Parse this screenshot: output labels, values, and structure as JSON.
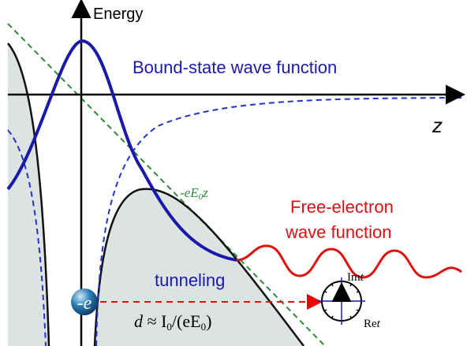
{
  "axes": {
    "y_label": "Energy",
    "x_label": "z"
  },
  "labels": {
    "bound_state": "Bound-state wave function",
    "field": {
      "main": "-eE",
      "sub": "0",
      "tail": "z"
    },
    "free_electron": [
      "Free-electron",
      "wave function"
    ],
    "tunneling": "tunneling",
    "electron": "-e",
    "distance": {
      "lhs": "d",
      "op": " ≈ I",
      "sub1": "0",
      "mid": "/(eE",
      "sub2": "0",
      "end": ")"
    },
    "clock": {
      "im": "Im",
      "im_var": "t",
      "t": "t",
      "t_sub": "0",
      "re": "Re",
      "re_var": "t"
    }
  }
}
